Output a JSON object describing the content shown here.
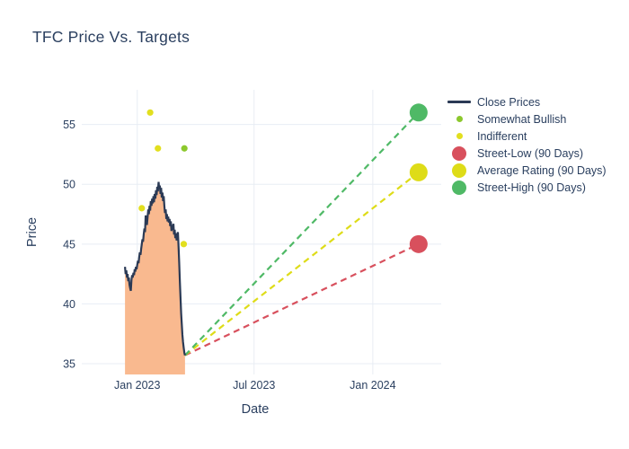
{
  "page": {
    "title": "TFC Price Vs. Targets"
  },
  "colors": {
    "text": "#2a3f5f",
    "grid": "#e8edf4",
    "close_line": "#2b3a55",
    "close_fill": "#f9b98f",
    "somewhat_bullish": "#8cc82d",
    "indifferent": "#e2df1e",
    "street_low": "#d8505d",
    "average_rating": "#dedc18",
    "street_high": "#4fb966"
  },
  "legend": {
    "items": [
      {
        "label": "Close Prices",
        "type": "line",
        "color": "#2b3a55"
      },
      {
        "label": "Somewhat Bullish",
        "type": "dot-small",
        "color": "#8cc82d"
      },
      {
        "label": "Indifferent",
        "type": "dot-small",
        "color": "#e2df1e"
      },
      {
        "label": "Street-Low (90 Days)",
        "type": "dot-large",
        "color": "#d8505d"
      },
      {
        "label": "Average Rating (90 Days)",
        "type": "dot-large",
        "color": "#dedc18"
      },
      {
        "label": "Street-High (90 Days)",
        "type": "dot-large",
        "color": "#4fb966"
      }
    ]
  },
  "chart_data": {
    "type": "line",
    "title": "TFC Price Vs. Targets",
    "xlabel": "Date",
    "ylabel": "Price",
    "x_axis": {
      "tick_labels": [
        "Jan 2023",
        "Jul 2023",
        "Jan 2024"
      ],
      "tick_days": [
        0,
        181,
        365
      ],
      "range_days": [
        -86,
        471
      ],
      "note_day0": "days measured from Jan 1 2023"
    },
    "y_axis": {
      "ticks": [
        35,
        40,
        45,
        50,
        55
      ],
      "range": [
        34.1,
        57.9
      ]
    },
    "series": [
      {
        "name": "Close Prices",
        "type": "line+area",
        "color": "#2b3a55",
        "fill_color": "#f9b98f",
        "points": [
          [
            -19,
            43.1
          ],
          [
            -18,
            42.5
          ],
          [
            -17,
            42.8
          ],
          [
            -16,
            42.2
          ],
          [
            -15,
            42.5
          ],
          [
            -14,
            41.9
          ],
          [
            -13,
            42.2
          ],
          [
            -12,
            41.6
          ],
          [
            -11,
            41.3
          ],
          [
            -10,
            41.1
          ],
          [
            -9,
            42.0
          ],
          [
            -8,
            42.4
          ],
          [
            -7,
            42.2
          ],
          [
            -6,
            42.6
          ],
          [
            -5,
            42.4
          ],
          [
            -4,
            42.9
          ],
          [
            -3,
            42.7
          ],
          [
            -2,
            43.1
          ],
          [
            -1,
            42.9
          ],
          [
            0,
            43.3
          ],
          [
            1,
            43.6
          ],
          [
            2,
            43.4
          ],
          [
            3,
            43.9
          ],
          [
            4,
            44.3
          ],
          [
            5,
            44.1
          ],
          [
            6,
            44.6
          ],
          [
            7,
            45.0
          ],
          [
            8,
            45.4
          ],
          [
            9,
            45.2
          ],
          [
            10,
            45.8
          ],
          [
            11,
            46.3
          ],
          [
            12,
            46.0
          ],
          [
            13,
            47.4
          ],
          [
            14,
            47.0
          ],
          [
            15,
            46.6
          ],
          [
            16,
            47.2
          ],
          [
            17,
            47.9
          ],
          [
            18,
            47.5
          ],
          [
            19,
            48.2
          ],
          [
            20,
            47.8
          ],
          [
            21,
            48.6
          ],
          [
            22,
            48.2
          ],
          [
            23,
            48.8
          ],
          [
            24,
            48.4
          ],
          [
            25,
            49.0
          ],
          [
            26,
            48.5
          ],
          [
            27,
            49.2
          ],
          [
            28,
            48.8
          ],
          [
            29,
            49.5
          ],
          [
            30,
            49.1
          ],
          [
            31,
            49.8
          ],
          [
            32,
            49.4
          ],
          [
            33,
            50.2
          ],
          [
            34,
            49.6
          ],
          [
            35,
            49.9
          ],
          [
            36,
            49.2
          ],
          [
            37,
            49.7
          ],
          [
            38,
            48.9
          ],
          [
            39,
            49.3
          ],
          [
            40,
            48.6
          ],
          [
            41,
            49.0
          ],
          [
            42,
            48.2
          ],
          [
            43,
            47.6
          ],
          [
            44,
            47.9
          ],
          [
            45,
            47.1
          ],
          [
            46,
            47.5
          ],
          [
            47,
            46.9
          ],
          [
            48,
            47.3
          ],
          [
            49,
            46.8
          ],
          [
            50,
            47.1
          ],
          [
            51,
            46.5
          ],
          [
            52,
            46.9
          ],
          [
            53,
            46.1
          ],
          [
            54,
            46.6
          ],
          [
            55,
            46.2
          ],
          [
            56,
            46.7
          ],
          [
            57,
            45.8
          ],
          [
            58,
            46.2
          ],
          [
            59,
            45.5
          ],
          [
            60,
            45.9
          ],
          [
            61,
            45.3
          ],
          [
            62,
            45.8
          ],
          [
            63,
            46.0
          ],
          [
            64,
            44.8
          ],
          [
            65,
            43.5
          ],
          [
            66,
            41.8
          ],
          [
            67,
            40.5
          ],
          [
            68,
            39.2
          ],
          [
            69,
            38.3
          ],
          [
            70,
            37.4
          ],
          [
            71,
            36.8
          ],
          [
            72,
            36.3
          ],
          [
            73,
            35.9
          ],
          [
            74,
            35.7
          ]
        ]
      },
      {
        "name": "Somewhat Bullish",
        "type": "scatter",
        "color": "#8cc82d",
        "points": [
          [
            73,
            53
          ]
        ]
      },
      {
        "name": "Indifferent",
        "type": "scatter",
        "color": "#e2df1e",
        "points": [
          [
            7,
            48
          ],
          [
            20,
            56
          ],
          [
            32,
            53
          ],
          [
            72,
            45
          ]
        ]
      }
    ],
    "targets": [
      {
        "name": "Street-Low (90 Days)",
        "color": "#d8505d",
        "day": 436,
        "value": 45
      },
      {
        "name": "Average Rating (90 Days)",
        "color": "#dedc18",
        "day": 436,
        "value": 51
      },
      {
        "name": "Street-High (90 Days)",
        "color": "#4fb966",
        "day": 436,
        "value": 56
      }
    ],
    "target_line_origin": [
      74,
      35.7
    ],
    "legend_position": "right"
  }
}
